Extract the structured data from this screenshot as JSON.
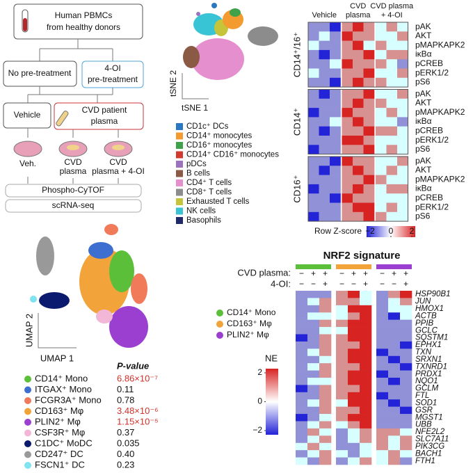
{
  "workflow": {
    "source": [
      "Human PBMCs",
      "from healthy donors"
    ],
    "no_pre": "No pre-treatment",
    "oi_pre": [
      "4-OI",
      "pre-treatment"
    ],
    "vehicle": "Vehicle",
    "plasma": [
      "CVD patient",
      "plasma"
    ],
    "dish_labels": [
      [
        "Veh."
      ],
      [
        "CVD",
        "plasma"
      ],
      [
        "CVD",
        "plasma + 4-OI"
      ]
    ],
    "assays": [
      "Phospho-CyTOF",
      "scRNA-seq"
    ]
  },
  "tsne": {
    "axis_y": "tSNE 2",
    "axis_x": "tSNE 1",
    "legend": [
      {
        "label": "CD1c⁺ DCs",
        "color": "#2a78c2"
      },
      {
        "label": "CD14⁺ monocytes",
        "color": "#f39b2f"
      },
      {
        "label": "CD16⁺ monocytes",
        "color": "#3fa24a"
      },
      {
        "label": "CD14⁺ CD16⁺ monocytes",
        "color": "#d33a2f"
      },
      {
        "label": "pDCs",
        "color": "#9a72c0"
      },
      {
        "label": "B cells",
        "color": "#8b5a45"
      },
      {
        "label": "CD4⁺ T cells",
        "color": "#e58fcf"
      },
      {
        "label": "CD8⁺ T cells",
        "color": "#8c8c8c"
      },
      {
        "label": "Exhausted T cells",
        "color": "#c6c43a"
      },
      {
        "label": "NK cells",
        "color": "#39c4d6"
      },
      {
        "label": "Basophils",
        "color": "#1f2a6b"
      }
    ]
  },
  "phospho_heatmap": {
    "columns": [
      [
        "Vehicle"
      ],
      [
        "CVD",
        "plasma"
      ],
      [
        "CVD plasma",
        "+ 4-OI"
      ]
    ],
    "groups": [
      {
        "label": "CD14⁺/16⁺",
        "markers": [
          "pAK",
          "AKT",
          "pMAPKAPK2",
          "iκBα",
          "pCREB",
          "pERK1/2",
          "pS6"
        ],
        "values": [
          [
            -1,
            -1,
            -2,
            1,
            2,
            1,
            0,
            1,
            0
          ],
          [
            -1,
            0,
            -1,
            2,
            1,
            1,
            0,
            0,
            1
          ],
          [
            0,
            -1,
            -1,
            1,
            2,
            0,
            1,
            0,
            0
          ],
          [
            -1,
            -2,
            -1,
            1,
            1,
            2,
            0,
            1,
            1
          ],
          [
            -1,
            -1,
            0,
            2,
            1,
            1,
            1,
            0,
            -1
          ],
          [
            0,
            -1,
            -1,
            1,
            1,
            2,
            0,
            0,
            1
          ],
          [
            -1,
            -1,
            -2,
            1,
            2,
            1,
            1,
            0,
            0
          ]
        ]
      },
      {
        "label": "CD14⁺",
        "markers": [
          "pAK",
          "AKT",
          "pMAPKAPK2",
          "iκBα",
          "pCREB",
          "pERK1/2",
          "pS6"
        ],
        "values": [
          [
            -1,
            -2,
            -1,
            1,
            1,
            2,
            0,
            0,
            1
          ],
          [
            -1,
            -1,
            -1,
            1,
            2,
            1,
            1,
            0,
            0
          ],
          [
            -2,
            -1,
            -1,
            2,
            1,
            1,
            0,
            1,
            0
          ],
          [
            -1,
            -1,
            0,
            1,
            2,
            1,
            0,
            0,
            -1
          ],
          [
            -1,
            -2,
            -1,
            1,
            1,
            2,
            1,
            1,
            0
          ],
          [
            -1,
            -1,
            -1,
            2,
            2,
            1,
            0,
            0,
            0
          ],
          [
            -2,
            -1,
            -1,
            1,
            1,
            2,
            0,
            1,
            0
          ]
        ]
      },
      {
        "label": "CD16⁺",
        "markers": [
          "pAK",
          "AKT",
          "pMAPKAPK2",
          "iκBα",
          "pCREB",
          "pERK1/2",
          "pS6"
        ],
        "values": [
          [
            -1,
            -1,
            -2,
            2,
            1,
            1,
            0,
            0,
            1
          ],
          [
            -1,
            -2,
            -1,
            1,
            2,
            1,
            0,
            1,
            0
          ],
          [
            -1,
            -1,
            -1,
            1,
            1,
            2,
            1,
            0,
            0
          ],
          [
            -2,
            -1,
            -1,
            1,
            2,
            1,
            0,
            1,
            1
          ],
          [
            -1,
            -1,
            -2,
            2,
            1,
            1,
            0,
            0,
            0
          ],
          [
            -1,
            -1,
            -1,
            1,
            2,
            2,
            0,
            1,
            0
          ],
          [
            -2,
            -1,
            -1,
            1,
            1,
            2,
            1,
            0,
            0
          ]
        ]
      }
    ],
    "colorbar": {
      "title": "Row Z-score",
      "ticks": [
        {
          "value": -2,
          "label": "−2"
        },
        0,
        2
      ]
    }
  },
  "umap": {
    "axis_y": "UMAP 2",
    "axis_x": "UMAP 1"
  },
  "pvalue_table": {
    "header": "P-value",
    "rows": [
      {
        "label": "CD14⁺ Mono",
        "p": "6.86×10⁻⁷",
        "dot": "#5cbf3a",
        "color": "#d0302a"
      },
      {
        "label": "ITGAX⁺ Mono",
        "p": "0.11",
        "dot": "#3c6fd0",
        "color": "#111111"
      },
      {
        "label": "FCGR3A⁺ Mono",
        "p": "0.78",
        "dot": "#f07a5a",
        "color": "#111111"
      },
      {
        "label": "CD163⁺ Mφ",
        "p": "3.48×10⁻⁶",
        "dot": "#f2a33a",
        "color": "#d0302a"
      },
      {
        "label": "PLIN2⁺ Mφ",
        "p": "1.15×10⁻⁵",
        "dot": "#9a3fd0",
        "color": "#d0302a"
      },
      {
        "label": "CSF3R⁺ Mφ",
        "p": "0.37",
        "dot": "#f2b6d6",
        "color": "#111111"
      },
      {
        "label": "C1DC⁺ MoDC",
        "p": "0.035",
        "dot": "#0b1a6e",
        "color": "#111111"
      },
      {
        "label": "CD247⁺ DC",
        "p": "0.40",
        "dot": "#999999",
        "color": "#111111"
      },
      {
        "label": "FSCN1⁺ DC",
        "p": "0.23",
        "dot": "#7fe3f0",
        "color": "#111111"
      }
    ]
  },
  "nrf2_heatmap": {
    "title": "NRF2 signature",
    "row_plasma": "CVD plasma:",
    "row_oi": "4-OI:",
    "column_groups": [
      {
        "name": "CD14⁺ Mono",
        "color": "#5cbf3a",
        "plasma": [
          "−",
          "+",
          "+"
        ],
        "oi": [
          "−",
          "−",
          "+"
        ]
      },
      {
        "name": "CD163⁺ Mφ",
        "color": "#f2a33a",
        "plasma": [
          "−",
          "+",
          "+"
        ],
        "oi": [
          "−",
          "−",
          "+"
        ]
      },
      {
        "name": "PLIN2⁺ Mφ",
        "color": "#9a3fd0",
        "plasma": [
          "−",
          "+",
          "+"
        ],
        "oi": [
          "−",
          "−",
          "+"
        ]
      }
    ],
    "genes": [
      "HSP90B1",
      "JUN",
      "HMOX1",
      "ACTB",
      "PPIB",
      "GCLC",
      "SQSTM1",
      "EPHX1",
      "TXN",
      "SRXN1",
      "TXNRD1",
      "PRDX1",
      "NQO1",
      "GCLM",
      "FTL",
      "SOD1",
      "GSR",
      "MGST1",
      "UBB",
      "NFE2L2",
      "SLC7A11",
      "PIK3CG",
      "BACH1",
      "FTH1"
    ],
    "values": [
      [
        -1,
        -1,
        -1,
        1,
        2,
        0,
        -1,
        1,
        2
      ],
      [
        -1,
        0,
        1,
        1,
        1,
        0,
        -1,
        0,
        1
      ],
      [
        -1,
        -1,
        1,
        0,
        2,
        2,
        -1,
        0,
        0
      ],
      [
        -1,
        0,
        0,
        0,
        1,
        2,
        -1,
        -2,
        0
      ],
      [
        -1,
        -1,
        1,
        1,
        2,
        2,
        -1,
        -1,
        -1
      ],
      [
        -1,
        -1,
        0,
        0,
        2,
        2,
        -1,
        -1,
        -1
      ],
      [
        -2,
        -1,
        1,
        1,
        2,
        2,
        -1,
        -1,
        -1
      ],
      [
        -1,
        -1,
        1,
        1,
        1,
        2,
        -1,
        -1,
        -2
      ],
      [
        -1,
        0,
        1,
        1,
        2,
        2,
        -2,
        -1,
        -1
      ],
      [
        -1,
        -1,
        0,
        1,
        2,
        2,
        -1,
        -2,
        -1
      ],
      [
        -1,
        0,
        1,
        1,
        1,
        2,
        -1,
        -1,
        -2
      ],
      [
        -1,
        -1,
        1,
        1,
        2,
        2,
        -2,
        -1,
        -1
      ],
      [
        -1,
        0,
        0,
        1,
        2,
        2,
        -1,
        -2,
        -1
      ],
      [
        -2,
        -1,
        1,
        1,
        1,
        2,
        -1,
        -1,
        -1
      ],
      [
        -1,
        -1,
        1,
        1,
        2,
        2,
        -2,
        -1,
        -1
      ],
      [
        -1,
        0,
        1,
        0,
        2,
        2,
        -1,
        -2,
        -1
      ],
      [
        -1,
        -1,
        1,
        1,
        1,
        2,
        -1,
        -1,
        -2
      ],
      [
        -2,
        -1,
        0,
        1,
        2,
        2,
        -1,
        -1,
        -1
      ],
      [
        -1,
        0,
        1,
        0,
        1,
        2,
        -1,
        -1,
        -1
      ],
      [
        -1,
        1,
        0,
        -1,
        0,
        1,
        1,
        1,
        0
      ],
      [
        -1,
        0,
        1,
        -1,
        0,
        1,
        1,
        0,
        1
      ],
      [
        0,
        1,
        0,
        -1,
        -1,
        0,
        1,
        0,
        1
      ],
      [
        -1,
        0,
        1,
        0,
        -1,
        0,
        0,
        1,
        0
      ],
      [
        0,
        -1,
        1,
        -1,
        0,
        1,
        0,
        1,
        -1
      ]
    ],
    "colorbar": {
      "title": "NE",
      "ticks": [
        2,
        0,
        {
          "value": -2,
          "label": "−2"
        }
      ]
    }
  }
}
